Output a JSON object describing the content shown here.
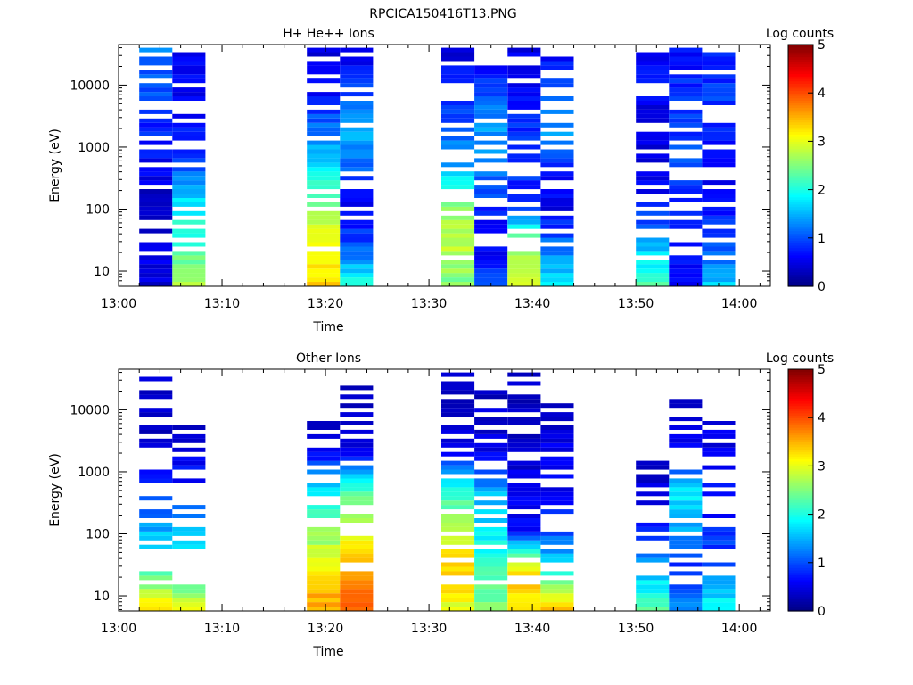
{
  "figure": {
    "title": "RPCICA150416T13.PNG"
  },
  "chart_data": [
    {
      "type": "heatmap",
      "title": "H+ He++ Ions",
      "xlabel": "Time",
      "ylabel": "Energy (eV)",
      "x_ticks": [
        "13:00",
        "13:10",
        "13:20",
        "13:30",
        "13:40",
        "13:50",
        "14:00"
      ],
      "x_range_minutes": [
        0,
        63
      ],
      "y_scale": "log",
      "y_range": [
        5.7,
        45000
      ],
      "y_ticks": [
        {
          "value": 10,
          "label": "10"
        },
        {
          "value": 100,
          "label": "100"
        },
        {
          "value": 1000,
          "label": "1000"
        },
        {
          "value": 10000,
          "label": "10000"
        }
      ],
      "colorbar": {
        "label": "Log counts",
        "range": [
          0,
          5
        ],
        "ticks": [
          "0",
          "1",
          "2",
          "3",
          "4",
          "5"
        ]
      },
      "columns": [
        {
          "t0": 2.0,
          "t1": 5.2,
          "top_ev": 40000,
          "values": [
            0.4,
            0.5,
            0.3,
            0.6,
            0.8,
            1.0,
            1.2
          ],
          "fill": 0.72,
          "seed": 3
        },
        {
          "t0": 5.2,
          "t1": 8.4,
          "top_ev": 40000,
          "values": [
            2.8,
            2.2,
            1.8,
            1.0,
            0.7,
            0.6,
            0.5
          ],
          "fill": 0.62,
          "seed": 7
        },
        {
          "t0": 18.2,
          "t1": 21.4,
          "top_ev": 40000,
          "values": [
            3.3,
            3.1,
            2.6,
            1.7,
            1.2,
            0.6,
            0.5
          ],
          "fill": 0.82,
          "seed": 11
        },
        {
          "t0": 21.4,
          "t1": 24.6,
          "top_ev": 40000,
          "values": [
            2.0,
            1.0,
            0.5,
            1.2,
            1.5,
            0.9,
            0.5
          ],
          "fill": 0.86,
          "seed": 13
        },
        {
          "t0": 31.2,
          "t1": 34.4,
          "top_ev": 40000,
          "values": [
            2.5,
            2.8,
            2.6,
            1.5,
            1.0,
            0.7,
            0.5
          ],
          "fill": 0.6,
          "seed": 17
        },
        {
          "t0": 34.4,
          "t1": 37.6,
          "top_ev": 40000,
          "values": [
            1.0,
            0.5,
            0.9,
            1.2,
            1.4,
            0.9,
            0.6
          ],
          "fill": 0.6,
          "seed": 19
        },
        {
          "t0": 37.6,
          "t1": 40.8,
          "top_ev": 40000,
          "values": [
            2.8,
            2.7,
            0.7,
            0.9,
            0.8,
            0.6,
            0.5
          ],
          "fill": 0.65,
          "seed": 23
        },
        {
          "t0": 40.8,
          "t1": 44.0,
          "top_ev": 40000,
          "values": [
            1.7,
            1.2,
            0.5,
            0.8,
            1.4,
            0.9,
            0.6
          ],
          "fill": 0.62,
          "seed": 29
        },
        {
          "t0": 50.0,
          "t1": 53.2,
          "top_ev": 40000,
          "values": [
            2.3,
            1.5,
            0.7,
            0.4,
            0.5,
            0.6,
            0.7
          ],
          "fill": 0.66,
          "seed": 31
        },
        {
          "t0": 53.2,
          "t1": 56.4,
          "top_ev": 40000,
          "values": [
            0.5,
            0.7,
            0.8,
            1.0,
            0.9,
            0.8,
            0.7
          ],
          "fill": 0.7,
          "seed": 37
        },
        {
          "t0": 56.4,
          "t1": 59.6,
          "top_ev": 40000,
          "values": [
            1.6,
            1.0,
            0.7,
            0.6,
            0.8,
            0.9,
            0.8
          ],
          "fill": 0.7,
          "seed": 41
        }
      ]
    },
    {
      "type": "heatmap",
      "title": "Other Ions",
      "xlabel": "Time",
      "ylabel": "Energy (eV)",
      "x_ticks": [
        "13:00",
        "13:10",
        "13:20",
        "13:30",
        "13:40",
        "13:50",
        "14:00"
      ],
      "x_range_minutes": [
        0,
        63
      ],
      "y_scale": "log",
      "y_range": [
        5.7,
        45000
      ],
      "y_ticks": [
        {
          "value": 10,
          "label": "10"
        },
        {
          "value": 100,
          "label": "100"
        },
        {
          "value": 1000,
          "label": "1000"
        },
        {
          "value": 10000,
          "label": "10000"
        }
      ],
      "colorbar": {
        "label": "Log counts",
        "range": [
          0,
          5
        ],
        "ticks": [
          "0",
          "1",
          "2",
          "3",
          "4",
          "5"
        ]
      },
      "columns": [
        {
          "t0": 2.0,
          "t1": 5.2,
          "top_ev": 30000,
          "values": [
            3.2,
            2.2,
            1.5,
            0.8,
            0.4,
            0.4,
            0.3
          ],
          "fill": 0.5,
          "seed": 43
        },
        {
          "t0": 5.2,
          "t1": 8.4,
          "top_ev": 11000,
          "values": [
            2.9,
            2.2,
            1.5,
            0.8,
            0.5,
            0.4,
            0.3
          ],
          "fill": 0.35,
          "seed": 47
        },
        {
          "t0": 18.2,
          "t1": 21.4,
          "top_ev": 6000,
          "values": [
            3.6,
            3.2,
            2.5,
            1.8,
            0.6,
            0.4,
            0.3
          ],
          "fill": 0.72,
          "seed": 53
        },
        {
          "t0": 21.4,
          "t1": 24.6,
          "top_ev": 22000,
          "values": [
            4.0,
            3.5,
            3.0,
            2.2,
            0.6,
            0.4,
            0.3
          ],
          "fill": 0.7,
          "seed": 59
        },
        {
          "t0": 31.2,
          "t1": 34.4,
          "top_ev": 40000,
          "values": [
            3.0,
            3.4,
            2.8,
            2.0,
            0.6,
            0.4,
            0.3
          ],
          "fill": 0.65,
          "seed": 61
        },
        {
          "t0": 34.4,
          "t1": 37.6,
          "top_ev": 18000,
          "values": [
            2.5,
            2.2,
            1.8,
            1.5,
            0.5,
            0.4,
            0.3
          ],
          "fill": 0.65,
          "seed": 67
        },
        {
          "t0": 37.6,
          "t1": 40.8,
          "top_ev": 38000,
          "values": [
            3.4,
            3.2,
            0.6,
            0.5,
            0.4,
            0.4,
            0.3
          ],
          "fill": 0.6,
          "seed": 71
        },
        {
          "t0": 40.8,
          "t1": 44.0,
          "top_ev": 14000,
          "values": [
            3.4,
            1.8,
            1.0,
            0.6,
            0.5,
            0.4,
            0.3
          ],
          "fill": 0.65,
          "seed": 73
        },
        {
          "t0": 50.0,
          "t1": 53.2,
          "top_ev": 3500,
          "values": [
            2.3,
            1.5,
            0.7,
            0.4,
            0.4,
            0.3,
            0.3
          ],
          "fill": 0.45,
          "seed": 79
        },
        {
          "t0": 53.2,
          "t1": 56.4,
          "top_ev": 14000,
          "values": [
            1.4,
            0.7,
            1.5,
            1.8,
            0.5,
            0.4,
            0.3
          ],
          "fill": 0.55,
          "seed": 83
        },
        {
          "t0": 56.4,
          "t1": 59.6,
          "top_ev": 6500,
          "values": [
            2.0,
            1.1,
            0.8,
            0.6,
            0.5,
            0.4,
            0.3
          ],
          "fill": 0.55,
          "seed": 89
        }
      ]
    }
  ]
}
